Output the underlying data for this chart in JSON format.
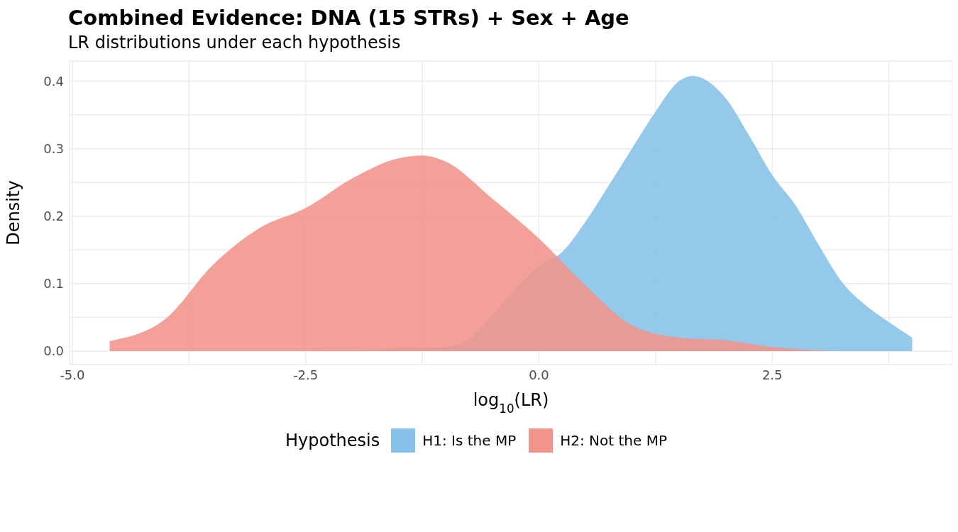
{
  "chart_data": {
    "type": "area",
    "title": "Combined Evidence: DNA (15 STRs) + Sex + Age",
    "subtitle": "LR distributions under each hypothesis",
    "xlabel": "log$_{10}$(LR)",
    "ylabel": "Density",
    "legend_title": "Hypothesis",
    "legend": "bottom",
    "grid": true,
    "xlim": [
      -5.03,
      4.43
    ],
    "xticks": [
      {
        "value": -5,
        "label": "-5.0"
      },
      {
        "value": -3.75,
        "label": null
      },
      -2.5,
      {
        "value": -1.25,
        "label": null
      },
      {
        "value": 0,
        "label": "0.0"
      },
      {
        "value": 1.25,
        "label": null
      },
      2.5,
      {
        "value": 3.75,
        "label": null
      }
    ],
    "ylim": [
      -0.02,
      0.43
    ],
    "yticks": [
      {
        "value": 0,
        "label": "0.0"
      },
      {
        "value": 0.05,
        "label": null
      },
      0.1,
      {
        "value": 0.15,
        "label": null
      },
      0.2,
      {
        "value": 0.25,
        "label": null
      },
      0.3,
      {
        "value": 0.35,
        "label": null
      },
      0.4
    ],
    "series": [
      {
        "name": "H1: Is the MP",
        "color": "#85c1e9",
        "x": [
          -2.5,
          -2.0,
          -1.5,
          -1.0,
          -0.75,
          -0.5,
          -0.25,
          0.0,
          0.25,
          0.5,
          0.75,
          1.0,
          1.25,
          1.5,
          1.65,
          2.0,
          2.25,
          2.5,
          2.75,
          3.0,
          3.25,
          3.5,
          3.75,
          4.0
        ],
        "values": [
          0,
          0.001,
          0.004,
          0.006,
          0.018,
          0.053,
          0.092,
          0.127,
          0.147,
          0.192,
          0.246,
          0.301,
          0.355,
          0.4,
          0.408,
          0.375,
          0.32,
          0.261,
          0.216,
          0.157,
          0.102,
          0.068,
          0.043,
          0.02
        ]
      },
      {
        "name": "H2: Not the MP",
        "color": "#f1948a",
        "x": [
          -4.6,
          -4.0,
          -3.5,
          -3.0,
          -2.5,
          -2.0,
          -1.5,
          -1.25,
          -1.0,
          -0.5,
          0.0,
          0.5,
          1.0,
          1.5,
          2.0,
          2.5,
          3.0,
          3.2
        ],
        "values": [
          0.015,
          0.048,
          0.127,
          0.182,
          0.212,
          0.256,
          0.286,
          0.29,
          0.281,
          0.226,
          0.167,
          0.097,
          0.038,
          0.02,
          0.016,
          0.006,
          0.001,
          0
        ]
      }
    ]
  }
}
